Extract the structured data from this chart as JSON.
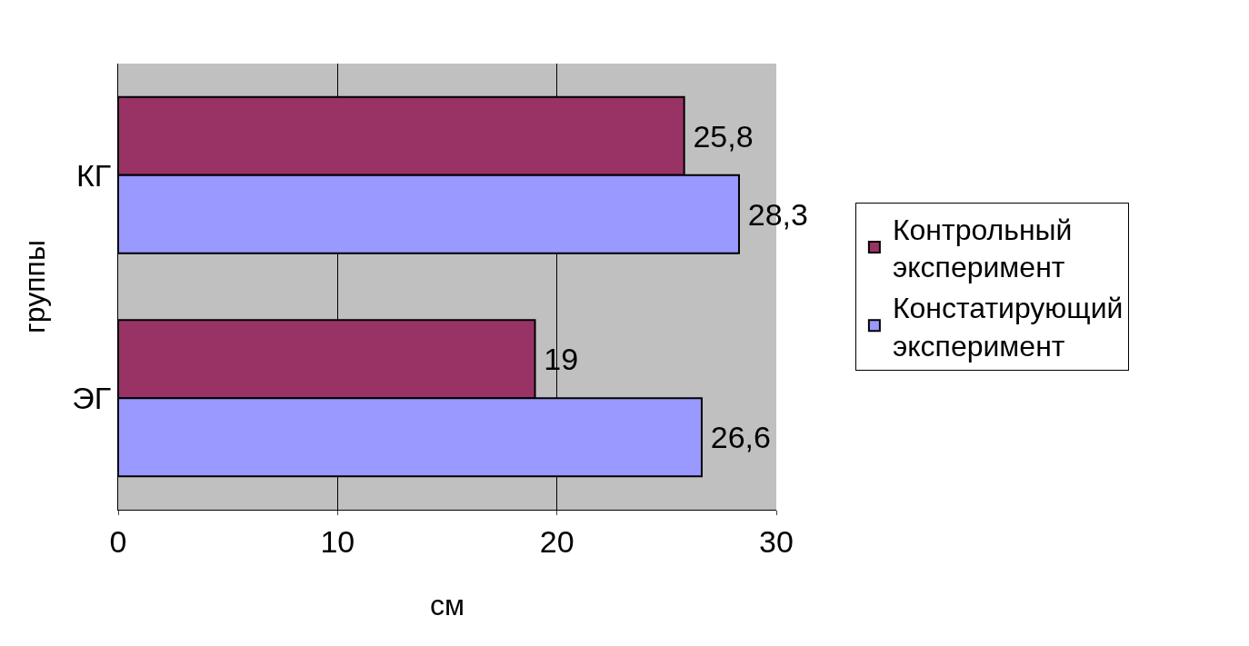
{
  "chart_data": {
    "type": "bar",
    "orientation": "horizontal",
    "xlabel": "см",
    "ylabel": "группы",
    "categories": [
      "КГ",
      "ЭГ"
    ],
    "series": [
      {
        "name": "Контрольный эксперимент",
        "color": "#993366",
        "values": [
          25.8,
          19
        ],
        "value_labels": [
          "25,8",
          "19"
        ]
      },
      {
        "name": "Констатирующий эксперимент",
        "color": "#9999ff",
        "values": [
          28.3,
          26.6
        ],
        "value_labels": [
          "28,3",
          "26,6"
        ]
      }
    ],
    "xlim": [
      0,
      30
    ],
    "xticks": [
      0,
      10,
      20,
      30
    ],
    "grid": "x",
    "legend": "right"
  }
}
